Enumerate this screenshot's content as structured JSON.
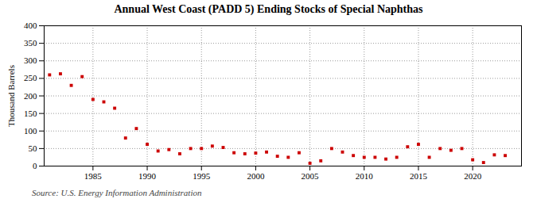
{
  "chart_data": {
    "type": "scatter",
    "title": "Annual West Coast (PADD 5) Ending Stocks of Special Naphthas",
    "ylabel": "Thousand Barrels",
    "source": "Source: U.S. Energy Information Administration",
    "x": [
      1981,
      1982,
      1983,
      1984,
      1985,
      1986,
      1987,
      1988,
      1989,
      1990,
      1991,
      1992,
      1993,
      1994,
      1995,
      1996,
      1997,
      1998,
      1999,
      2000,
      2001,
      2002,
      2003,
      2004,
      2005,
      2006,
      2007,
      2008,
      2009,
      2010,
      2011,
      2012,
      2013,
      2014,
      2015,
      2016,
      2017,
      2018,
      2019,
      2020,
      2021,
      2022,
      2023
    ],
    "values": [
      260,
      263,
      230,
      255,
      190,
      183,
      165,
      80,
      107,
      62,
      43,
      47,
      35,
      50,
      50,
      57,
      53,
      38,
      35,
      37,
      40,
      28,
      25,
      38,
      8,
      15,
      50,
      40,
      30,
      25,
      25,
      20,
      25,
      55,
      62,
      25,
      50,
      45,
      50,
      18,
      10,
      32,
      30
    ],
    "color": "#cc0000",
    "marker": "square",
    "xlim": [
      1980.5,
      2024.5
    ],
    "xticks": [
      1985,
      1990,
      1995,
      2000,
      2005,
      2010,
      2015,
      2020
    ],
    "ylim": [
      0,
      400
    ],
    "yticks": [
      0,
      50,
      100,
      150,
      200,
      250,
      300,
      350,
      400
    ],
    "grid": true
  }
}
